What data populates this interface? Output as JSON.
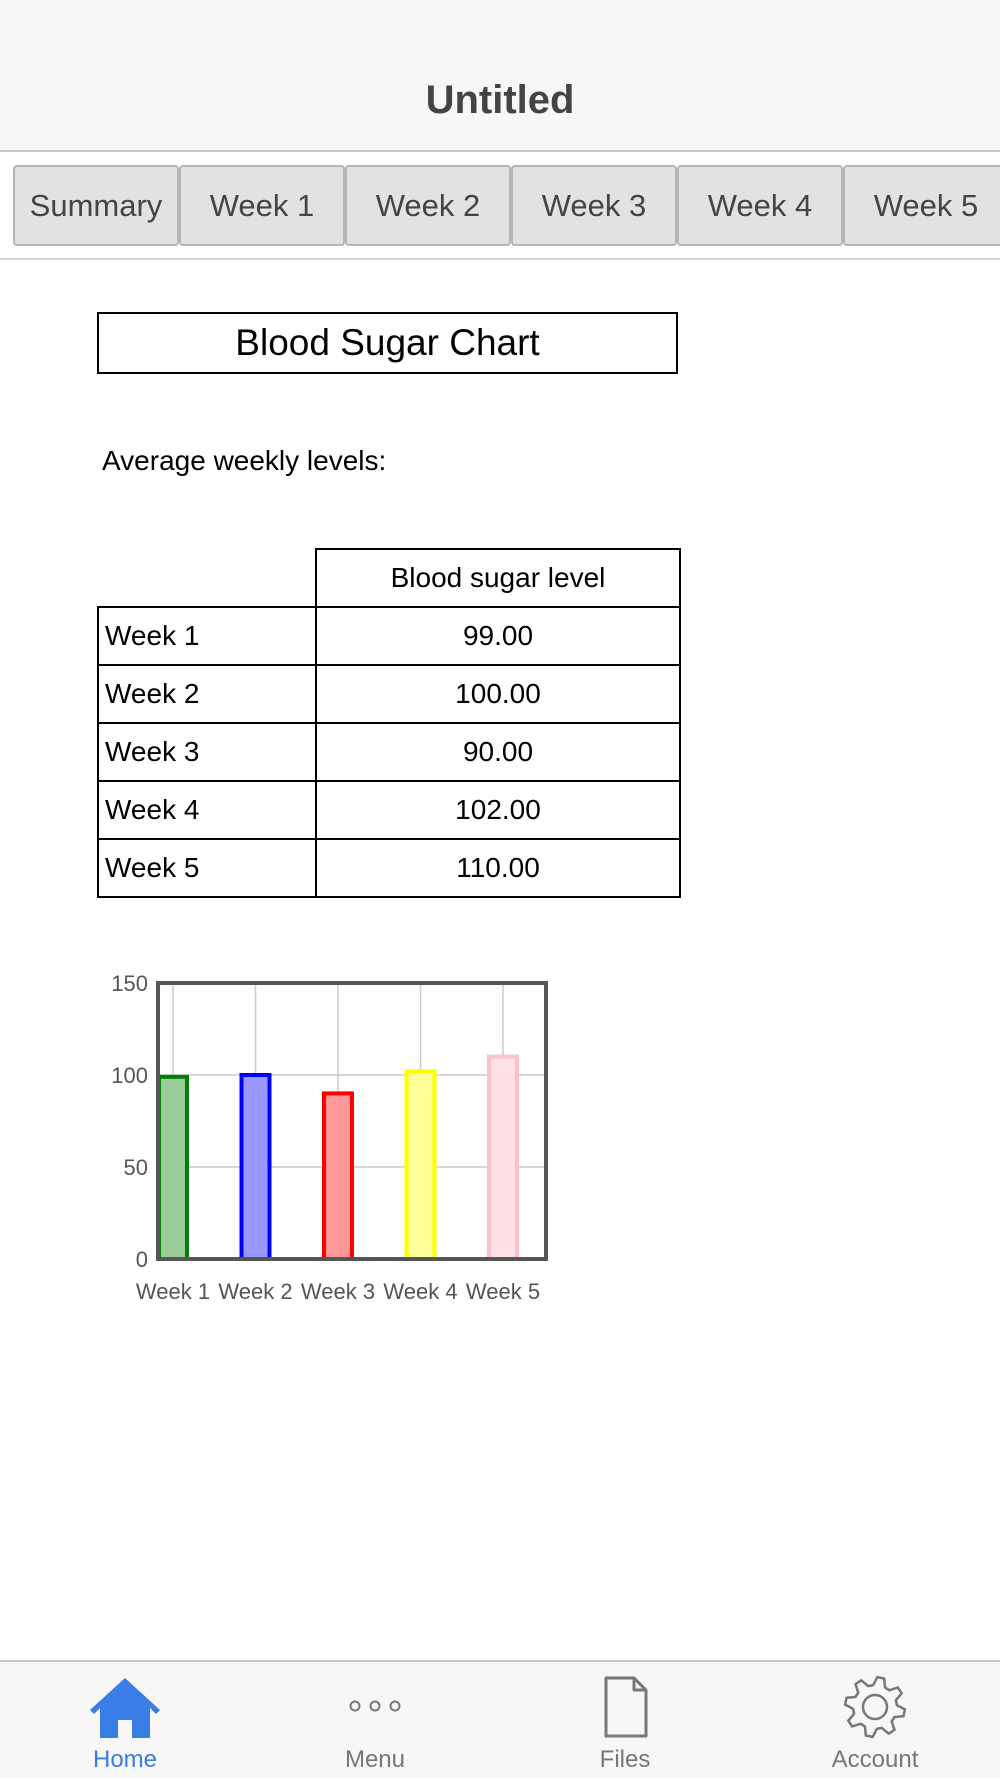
{
  "app": {
    "title": "Untitled"
  },
  "tabs": [
    {
      "label": "Summary",
      "active": true
    },
    {
      "label": "Week 1"
    },
    {
      "label": "Week 2"
    },
    {
      "label": "Week 3"
    },
    {
      "label": "Week 4"
    },
    {
      "label": "Week 5"
    }
  ],
  "main": {
    "title": "Blood Sugar Chart",
    "subtitle": "Average weekly levels:",
    "table": {
      "header": "Blood sugar level",
      "rows": [
        {
          "week": "Week 1",
          "value": "99.00"
        },
        {
          "week": "Week 2",
          "value": "100.00"
        },
        {
          "week": "Week 3",
          "value": "90.00"
        },
        {
          "week": "Week 4",
          "value": "102.00"
        },
        {
          "week": "Week 5",
          "value": "110.00"
        }
      ]
    }
  },
  "chart_data": {
    "type": "bar",
    "categories": [
      "Week 1",
      "Week 2",
      "Week 3",
      "Week 4",
      "Week 5"
    ],
    "values": [
      99,
      100,
      90,
      102,
      110
    ],
    "colors": [
      "#008000",
      "#0000ff",
      "#ff0000",
      "#ffff00",
      "#ffc0cb"
    ],
    "fill_colors": [
      "#99cc99",
      "#9999ff",
      "#ff9999",
      "#ffff99",
      "#ffe0e6"
    ],
    "ylim": [
      0,
      150
    ],
    "yticks": [
      "0",
      "50",
      "100",
      "150"
    ],
    "grid": true,
    "title": "",
    "xlabel": "",
    "ylabel": ""
  },
  "bottom_nav": [
    {
      "label": "Home",
      "icon": "home-icon",
      "active": true
    },
    {
      "label": "Menu",
      "icon": "more-icon"
    },
    {
      "label": "Files",
      "icon": "file-icon"
    },
    {
      "label": "Account",
      "icon": "gear-icon"
    }
  ],
  "theme": {
    "accent": "#3a7de6",
    "inactive": "#777777"
  }
}
